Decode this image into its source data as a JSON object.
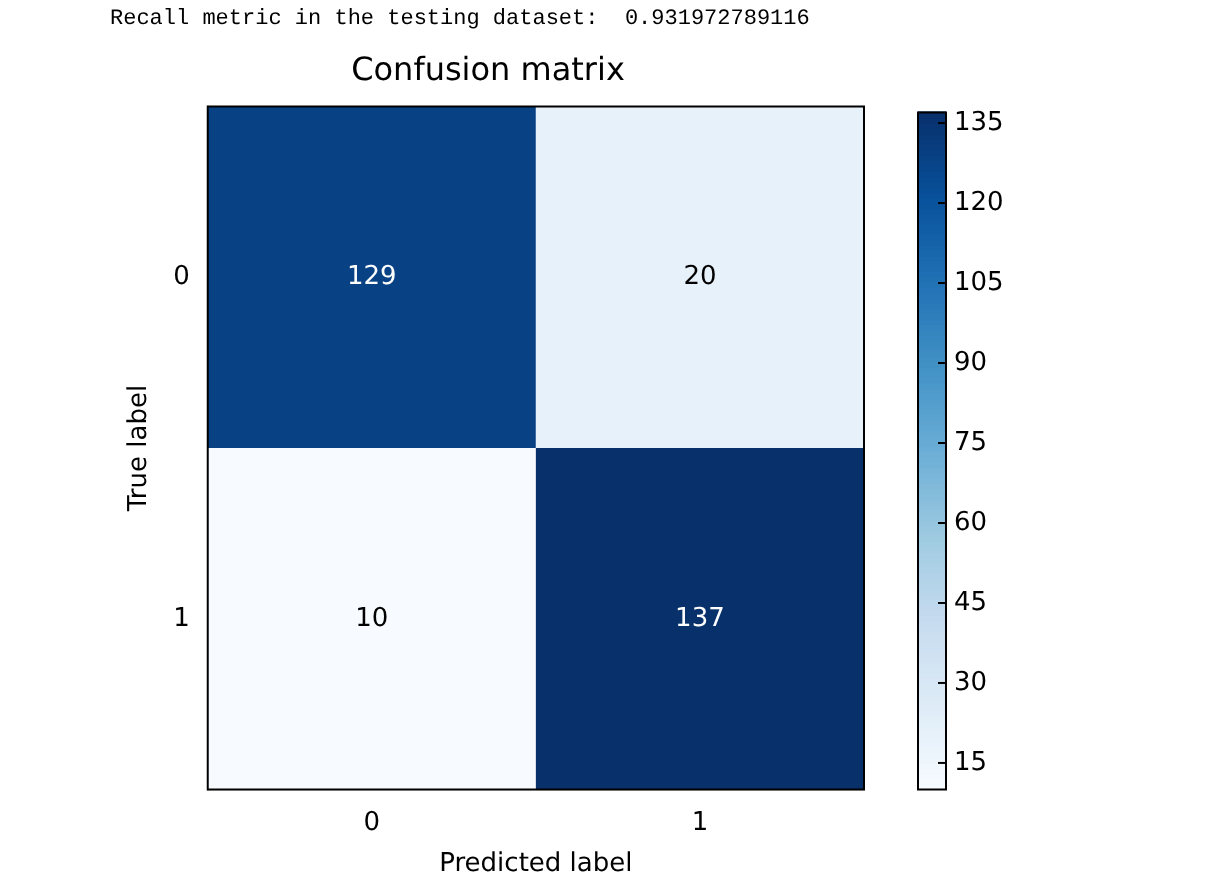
{
  "chart_data": {
    "type": "heatmap",
    "title": "Confusion matrix",
    "xlabel": "Predicted label",
    "ylabel": "True label",
    "annotations": [
      "Recall metric in the testing dataset:  0.931972789116"
    ],
    "categories": [
      "0",
      "1"
    ],
    "y_categories": [
      "0",
      "1"
    ],
    "cells": [
      [
        129,
        20
      ],
      [
        10,
        137
      ]
    ],
    "clim": [
      10,
      137
    ],
    "cticks": [
      15,
      30,
      45,
      60,
      75,
      90,
      105,
      120,
      135
    ],
    "data_labels": true
  }
}
